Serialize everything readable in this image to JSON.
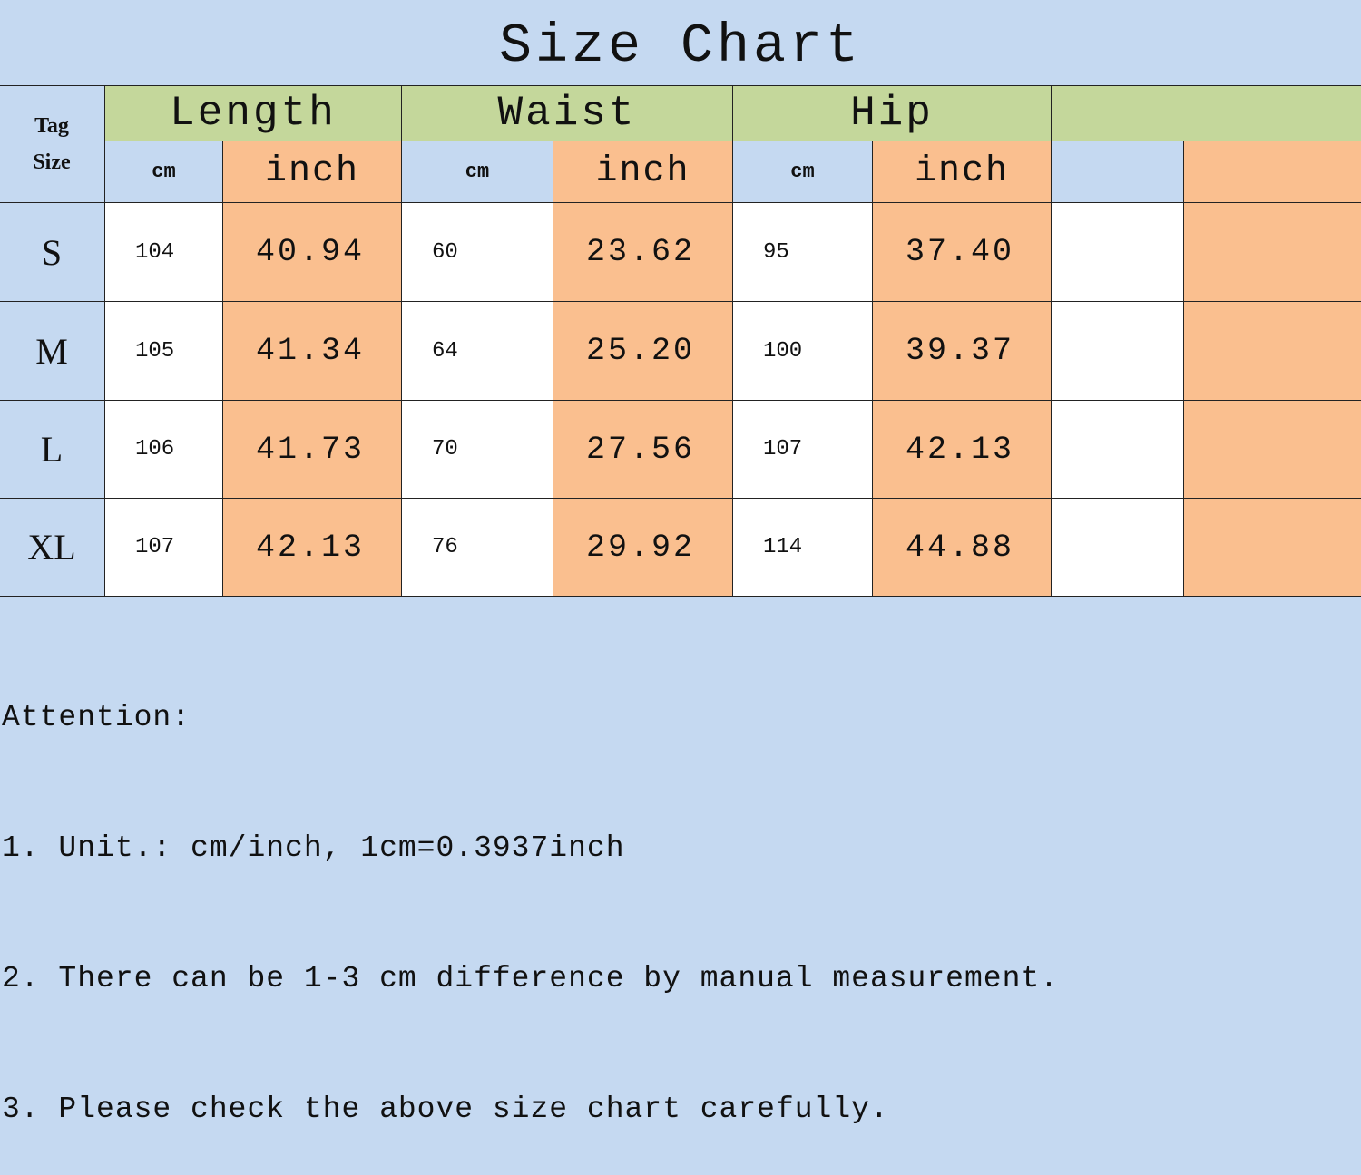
{
  "title": "Size Chart",
  "table": {
    "corner": "Tag Size",
    "groups": [
      "Length",
      "Waist",
      "Hip"
    ],
    "units": [
      "cm",
      "inch",
      "cm",
      "inch",
      "cm",
      "inch"
    ],
    "rows": [
      [
        "S",
        "104",
        "40.94",
        "60",
        "23.62",
        "95",
        "37.40"
      ],
      [
        "M",
        "105",
        "41.34",
        "64",
        "25.20",
        "100",
        "39.37"
      ],
      [
        "L",
        "106",
        "41.73",
        "70",
        "27.56",
        "107",
        "42.13"
      ],
      [
        "XL",
        "107",
        "42.13",
        "76",
        "29.92",
        "114",
        "44.88"
      ]
    ]
  },
  "notes": {
    "heading": "Attention:",
    "items": [
      "1. Unit.: cm/inch, 1cm=0.3937inch",
      "2. There can be 1-3 cm difference by manual measurement.",
      "3. Please check the above size chart carefully."
    ]
  }
}
